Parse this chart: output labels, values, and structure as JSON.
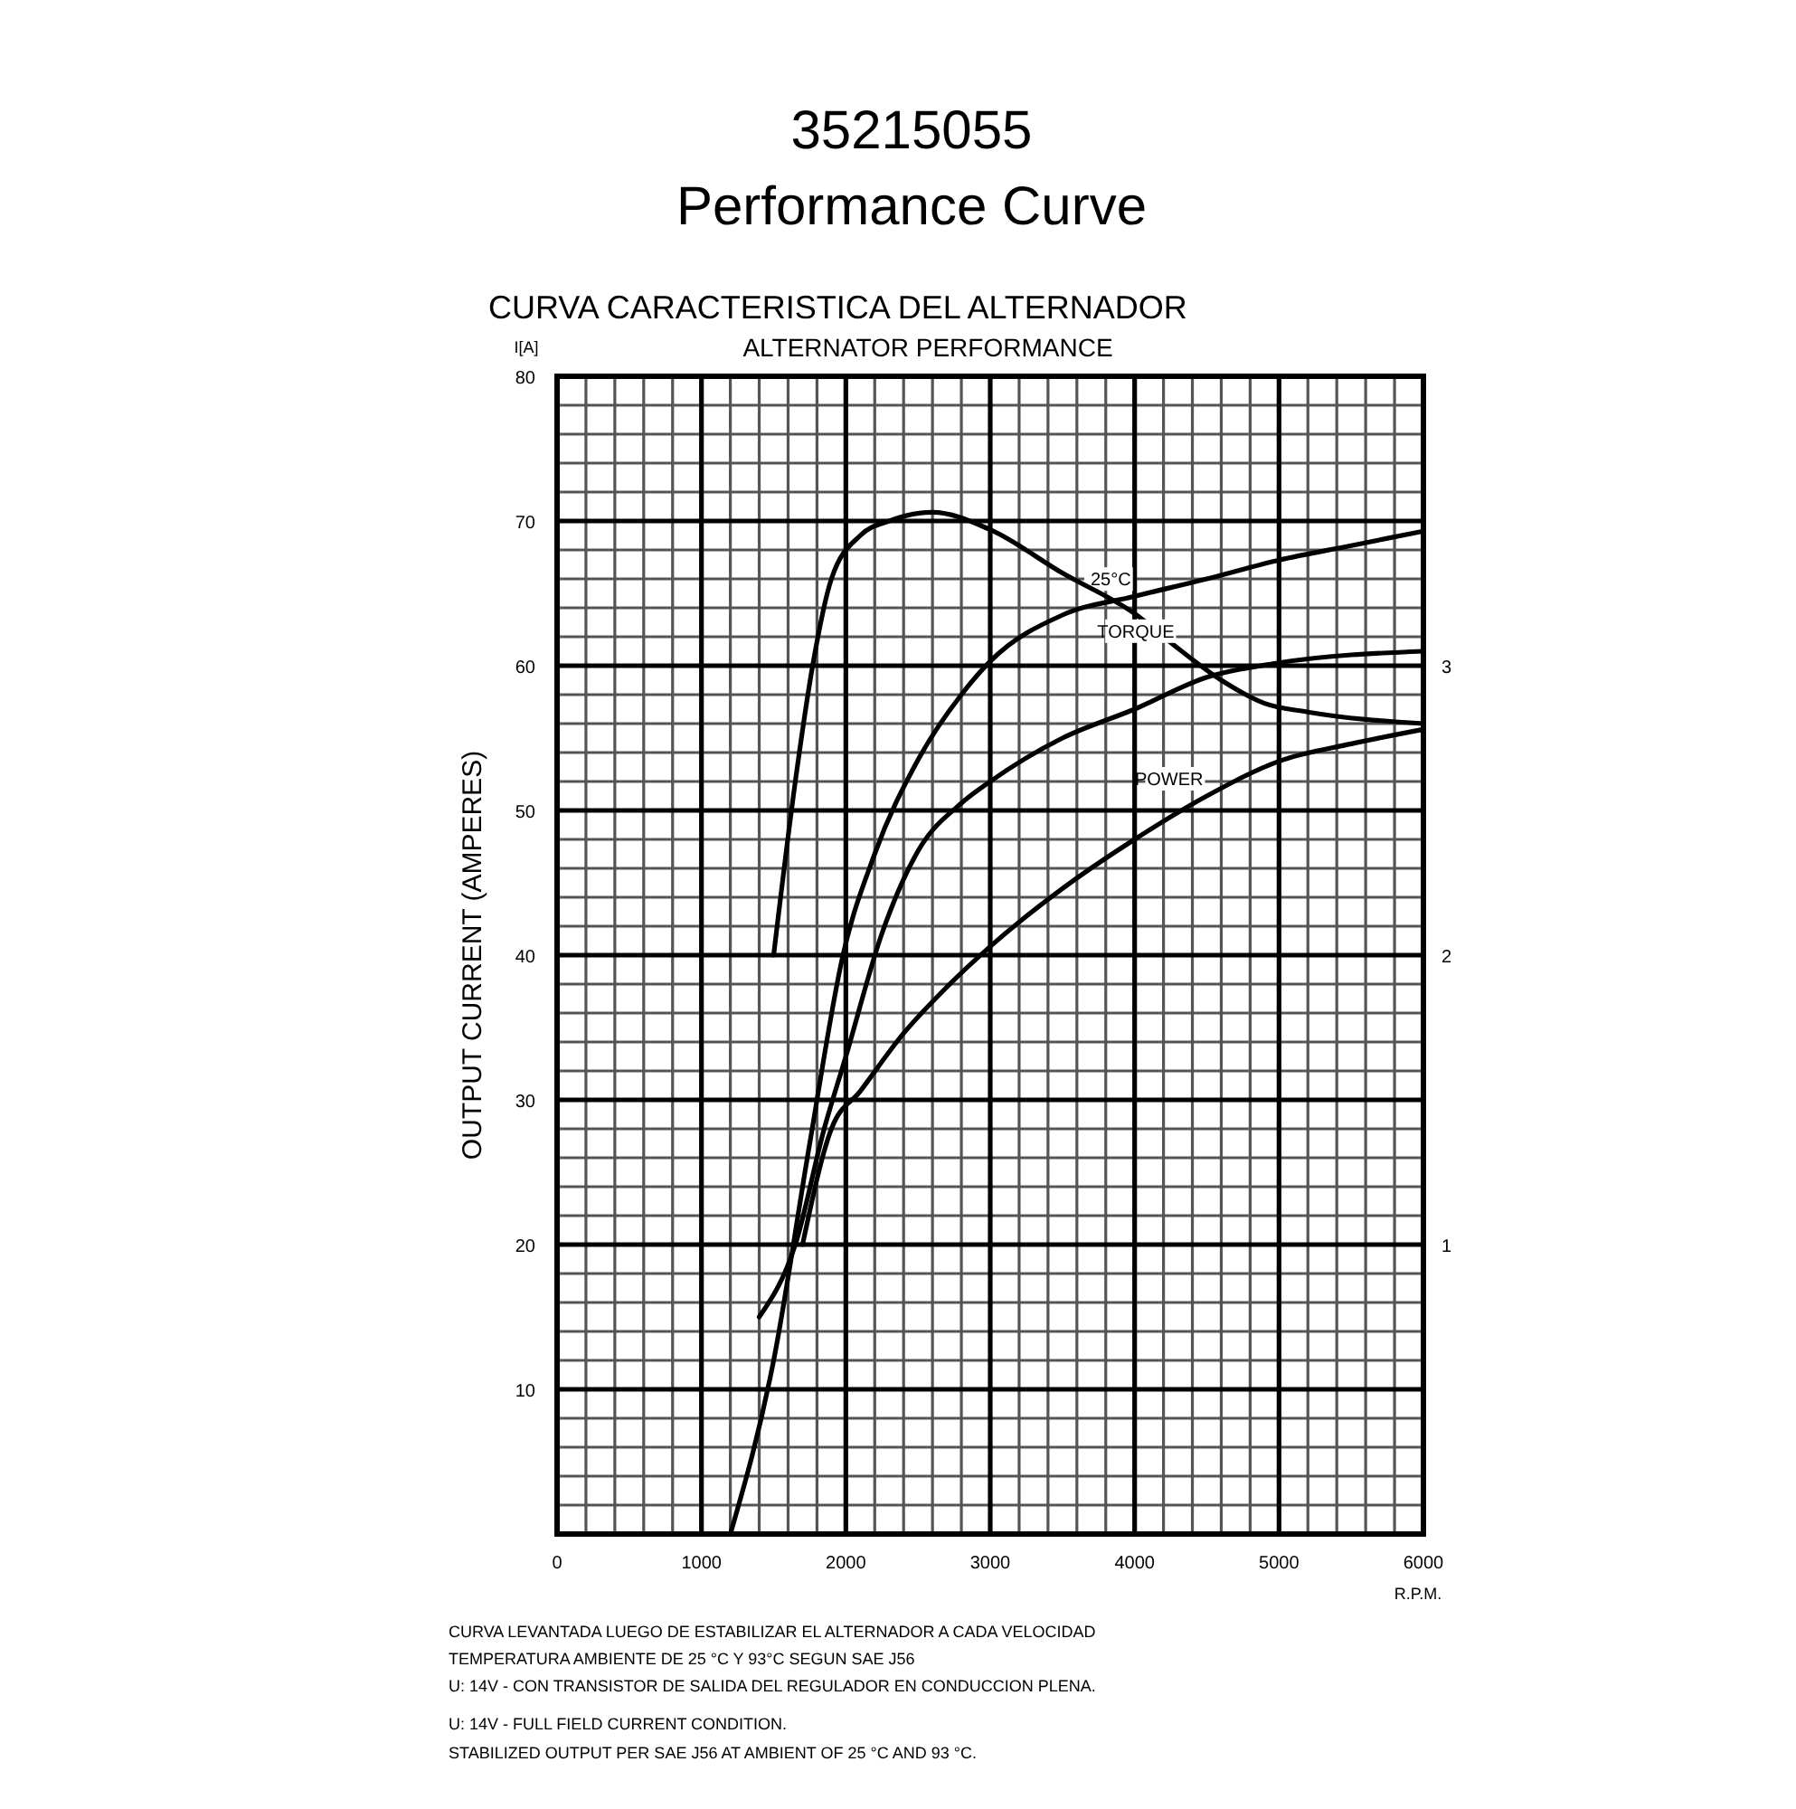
{
  "chart_data": {
    "type": "line",
    "title": "35215055",
    "subtitle": "Performance Curve",
    "xlabel": "R.P.M.",
    "ylabel": "OUTPUT CURRENT (AMPERES)",
    "x": [
      1200,
      1500,
      1750,
      1980,
      2200,
      2500,
      2800,
      3000,
      3500,
      4000,
      4500,
      5000,
      5500,
      6000
    ],
    "series": [
      {
        "name": "25°C",
        "color": "#000000",
        "values": [
          0,
          12,
          27,
          40,
          47,
          53.5,
          58,
          60.3,
          63.5,
          64.8,
          66,
          67.3,
          68.3,
          69.3
        ]
      },
      {
        "color": "#000000",
        "x": [
          1400,
          1650,
          1850,
          2000,
          2250,
          2500,
          2800,
          3000,
          3500,
          4000,
          4500,
          5000,
          6000
        ],
        "values": [
          15,
          20,
          28,
          33,
          41.5,
          47.2,
          50.5,
          52,
          55,
          57,
          59.2,
          60.2,
          61
        ]
      },
      {
        "name": "TORQUE",
        "color": "#000000",
        "axis": "y2",
        "x": [
          1500,
          1650,
          1770,
          1900,
          2100,
          2300,
          2600,
          3000,
          3500,
          4000,
          4300,
          4600,
          4900,
          5200,
          6000
        ],
        "values": [
          2.0,
          2.6,
          3.0,
          3.3,
          3.45,
          3.5,
          3.53,
          3.47,
          3.32,
          3.18,
          3.06,
          2.95,
          2.87,
          2.84,
          2.8
        ]
      },
      {
        "name": "POWER",
        "color": "#000000",
        "axis": "y2",
        "x": [
          1700,
          1900,
          2100,
          2400,
          2700,
          3000,
          3500,
          4000,
          4500,
          5000,
          5500,
          6000
        ],
        "values": [
          1.0,
          1.4,
          1.53,
          1.73,
          1.89,
          2.03,
          2.23,
          2.4,
          2.55,
          2.67,
          2.73,
          2.78
        ]
      }
    ],
    "xlim": [
      0,
      6000
    ],
    "xticks": [
      0,
      1000,
      2000,
      3000,
      4000,
      5000,
      6000
    ],
    "ylim": [
      0,
      80
    ],
    "yticks": [
      10,
      20,
      30,
      40,
      50,
      60,
      70,
      80
    ],
    "y2lim": [
      0,
      4
    ],
    "y2ticks": [
      1,
      2,
      3
    ],
    "grid": true,
    "annotations": [
      "CURVA CARACTERISTICA DEL ALTERNADOR",
      "ALTERNATOR PERFORMANCE",
      "I[A]",
      "CURVA LEVANTADA LUEGO DE ESTABILIZAR EL ALTERNADOR A CADA VELOCIDAD",
      "TEMPERATURA AMBIENTE DE 25 °C Y 93°C SEGUN SAE J56",
      "U: 14V - CON TRANSISTOR DE SALIDA DEL REGULADOR EN CONDUCCION PLENA.",
      "U: 14V - FULL FIELD CURRENT CONDITION.",
      "STABILIZED OUTPUT PER SAE J56 AT AMBIENT OF 25 °C AND 93 °C."
    ]
  }
}
